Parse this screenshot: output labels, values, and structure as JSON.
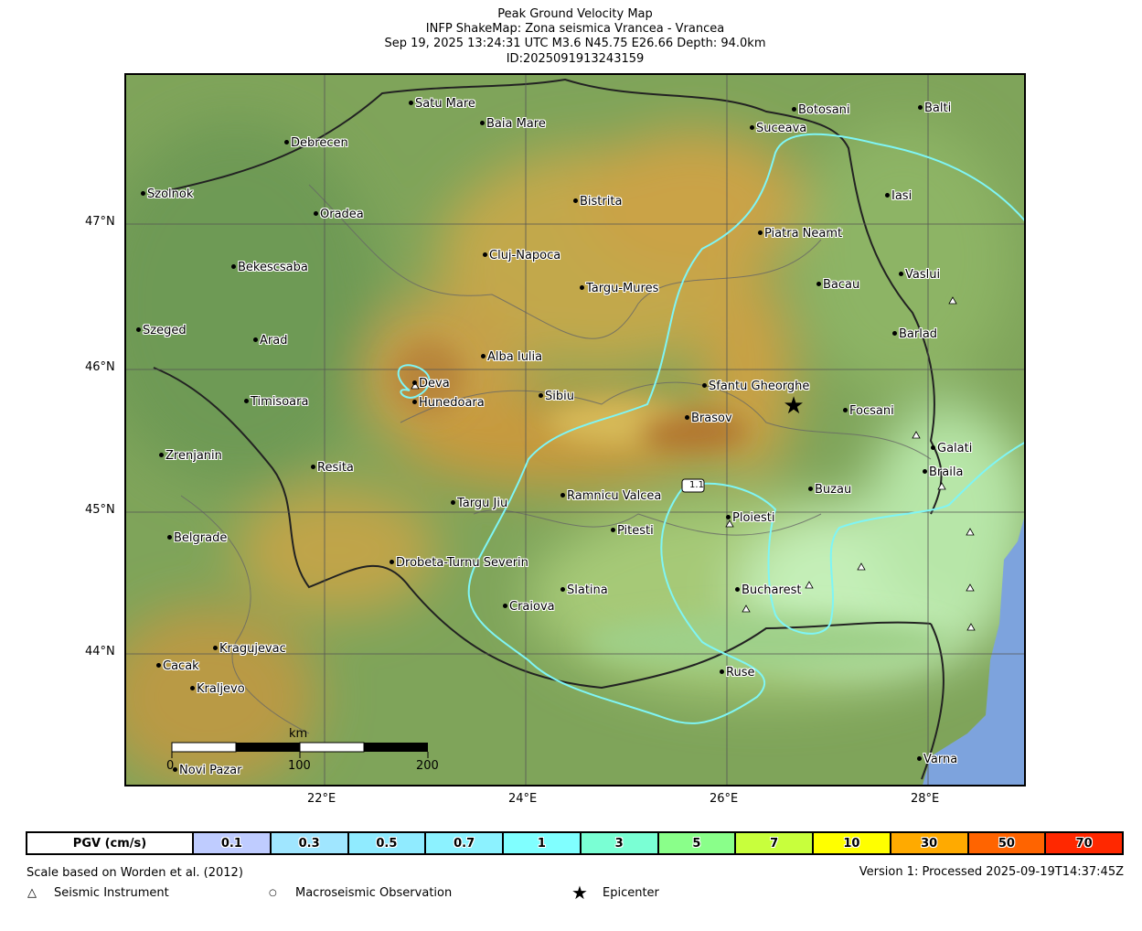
{
  "header": {
    "title": "Peak Ground Velocity Map",
    "subtitle": "INFP ShakeMap: Zona seismica Vrancea - Vrancea",
    "event": "Sep 19, 2025 13:24:31 UTC M3.6 N45.75 E26.66 Depth: 94.0km",
    "id": "ID:2025091913243159"
  },
  "axes": {
    "lat_labels": [
      "47°N",
      "46°N",
      "45°N",
      "44°N"
    ],
    "lon_labels": [
      "22°E",
      "24°E",
      "26°E",
      "28°E"
    ]
  },
  "cities": [
    "Satu Mare",
    "Baia Mare",
    "Debrecen",
    "Szolnok",
    "Oradea",
    "Bistrita",
    "Botosani",
    "Suceava",
    "Balti",
    "Iasi",
    "Piatra Neamt",
    "Cluj-Napoca",
    "Bekescsaba",
    "Targu-Mures",
    "Bacau",
    "Vaslui",
    "Szeged",
    "Arad",
    "Barlad",
    "Alba Iulia",
    "Deva",
    "Hunedoara",
    "Timisoara",
    "Sibiu",
    "Sfantu Gheorghe",
    "Brasov",
    "Focsani",
    "Zrenjanin",
    "Galati",
    "Resita",
    "Braila",
    "Buzau",
    "Ramnicu Valcea",
    "Targu Jiu",
    "Ploiesti",
    "Pitesti",
    "Belgrade",
    "Drobeta-Turnu Severin",
    "Slatina",
    "Bucharest",
    "Craiova",
    "Kragujevac",
    "Cacak",
    "Ruse",
    "Kraljevo",
    "Novi Pazar",
    "Varna"
  ],
  "contour_label": "1.1",
  "scale_bar": {
    "unit": "km",
    "ticks": [
      "0",
      "100",
      "200"
    ]
  },
  "epicenter": {
    "lat": 45.75,
    "lon": 26.66,
    "icon": "star-icon"
  },
  "contour_color": "#7ff5f5",
  "legend": {
    "title": "PGV (cm/s)",
    "bins": [
      {
        "label": "0.1",
        "color": "#bfccff"
      },
      {
        "label": "0.3",
        "color": "#a0e6ff"
      },
      {
        "label": "0.5",
        "color": "#90ebff"
      },
      {
        "label": "0.7",
        "color": "#8cf2ff"
      },
      {
        "label": "1",
        "color": "#80ffff"
      },
      {
        "label": "3",
        "color": "#7affd4"
      },
      {
        "label": "5",
        "color": "#8aff8a"
      },
      {
        "label": "7",
        "color": "#c8ff3c"
      },
      {
        "label": "10",
        "color": "#ffff00"
      },
      {
        "label": "30",
        "color": "#ffaa00"
      },
      {
        "label": "50",
        "color": "#ff6400"
      },
      {
        "label": "70",
        "color": "#ff2800"
      }
    ]
  },
  "footer": {
    "scale_note": "Scale based on Worden et al. (2012)",
    "version": "Version 1: Processed 2025-09-19T14:37:45Z",
    "symbols": [
      {
        "icon": "triangle-icon",
        "glyph": "△",
        "label": "Seismic Instrument"
      },
      {
        "icon": "circle-icon",
        "glyph": "○",
        "label": "Macroseismic Observation"
      },
      {
        "icon": "star-icon",
        "glyph": "★",
        "label": "Epicenter"
      }
    ]
  }
}
